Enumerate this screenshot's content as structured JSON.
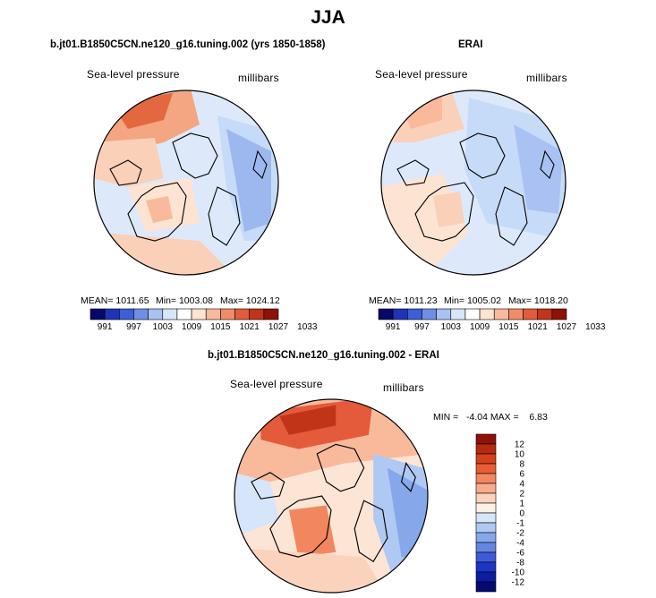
{
  "title": "JJA",
  "panels": {
    "left": {
      "title": "b.jt01.B1850C5CN.ne120_g16.tuning.002 (yrs 1850-1858)",
      "variable": "Sea-level pressure",
      "units": "millibars",
      "mean_label": "MEAN= 1011.65",
      "min_label": "Min= 1003.08",
      "max_label": "Max= 1024.12"
    },
    "right": {
      "title": "ERAI",
      "variable": "Sea-level pressure",
      "units": "millibars",
      "mean_label": "MEAN= 1011.23",
      "min_label": "Min= 1005.02",
      "max_label": "Max= 1018.20"
    },
    "diff": {
      "title": "b.jt01.B1850C5CN.ne120_g16.tuning.002 - ERAI",
      "variable": "Sea-level pressure",
      "units": "millibars",
      "minmax_label": "MIN =   -4.04 MAX =    6.83"
    }
  },
  "chart_data": [
    {
      "type": "heatmap",
      "panel": "left",
      "projection": "polar stereographic (north pole)",
      "colorbar": {
        "orientation": "horizontal",
        "levels": [
          991,
          997,
          1003,
          1009,
          1015,
          1021,
          1027,
          1033
        ],
        "colors": [
          "#08086b",
          "#1f33b8",
          "#3c5fd6",
          "#6f8fe6",
          "#a9c2f3",
          "#d8e6fb",
          "#ffffff",
          "#fde3d2",
          "#f9b99b",
          "#f28c68",
          "#e35b3a",
          "#c23418",
          "#8e1208"
        ]
      },
      "stats": {
        "mean": 1011.65,
        "min": 1003.08,
        "max": 1024.12
      }
    },
    {
      "type": "heatmap",
      "panel": "right",
      "projection": "polar stereographic (north pole)",
      "colorbar": {
        "orientation": "horizontal",
        "levels": [
          991,
          997,
          1003,
          1009,
          1015,
          1021,
          1027,
          1033
        ],
        "colors": [
          "#08086b",
          "#1f33b8",
          "#3c5fd6",
          "#6f8fe6",
          "#a9c2f3",
          "#d8e6fb",
          "#ffffff",
          "#fde3d2",
          "#f9b99b",
          "#f28c68",
          "#e35b3a",
          "#c23418",
          "#8e1208"
        ]
      },
      "stats": {
        "mean": 1011.23,
        "min": 1005.02,
        "max": 1018.2
      }
    },
    {
      "type": "heatmap",
      "panel": "diff",
      "projection": "polar stereographic (north pole)",
      "colorbar": {
        "orientation": "vertical",
        "levels": [
          12,
          10,
          8,
          6,
          4,
          2,
          1,
          0,
          -1,
          -2,
          -4,
          -6,
          -8,
          -10,
          -12
        ],
        "colors": [
          "#8e1208",
          "#b42a10",
          "#d6401c",
          "#ea5d34",
          "#f2875f",
          "#f7ad8c",
          "#fbd3bd",
          "#fdf0e6",
          "#d6e5fa",
          "#b0c9f3",
          "#86a8ea",
          "#6485e2",
          "#3d5ad8",
          "#1e34c4",
          "#0d1ca3",
          "#06096f"
        ]
      },
      "stats": {
        "min": -4.04,
        "max": 6.83
      }
    }
  ],
  "colors": {
    "land_outline": "#000000",
    "map_border": "#000000"
  }
}
